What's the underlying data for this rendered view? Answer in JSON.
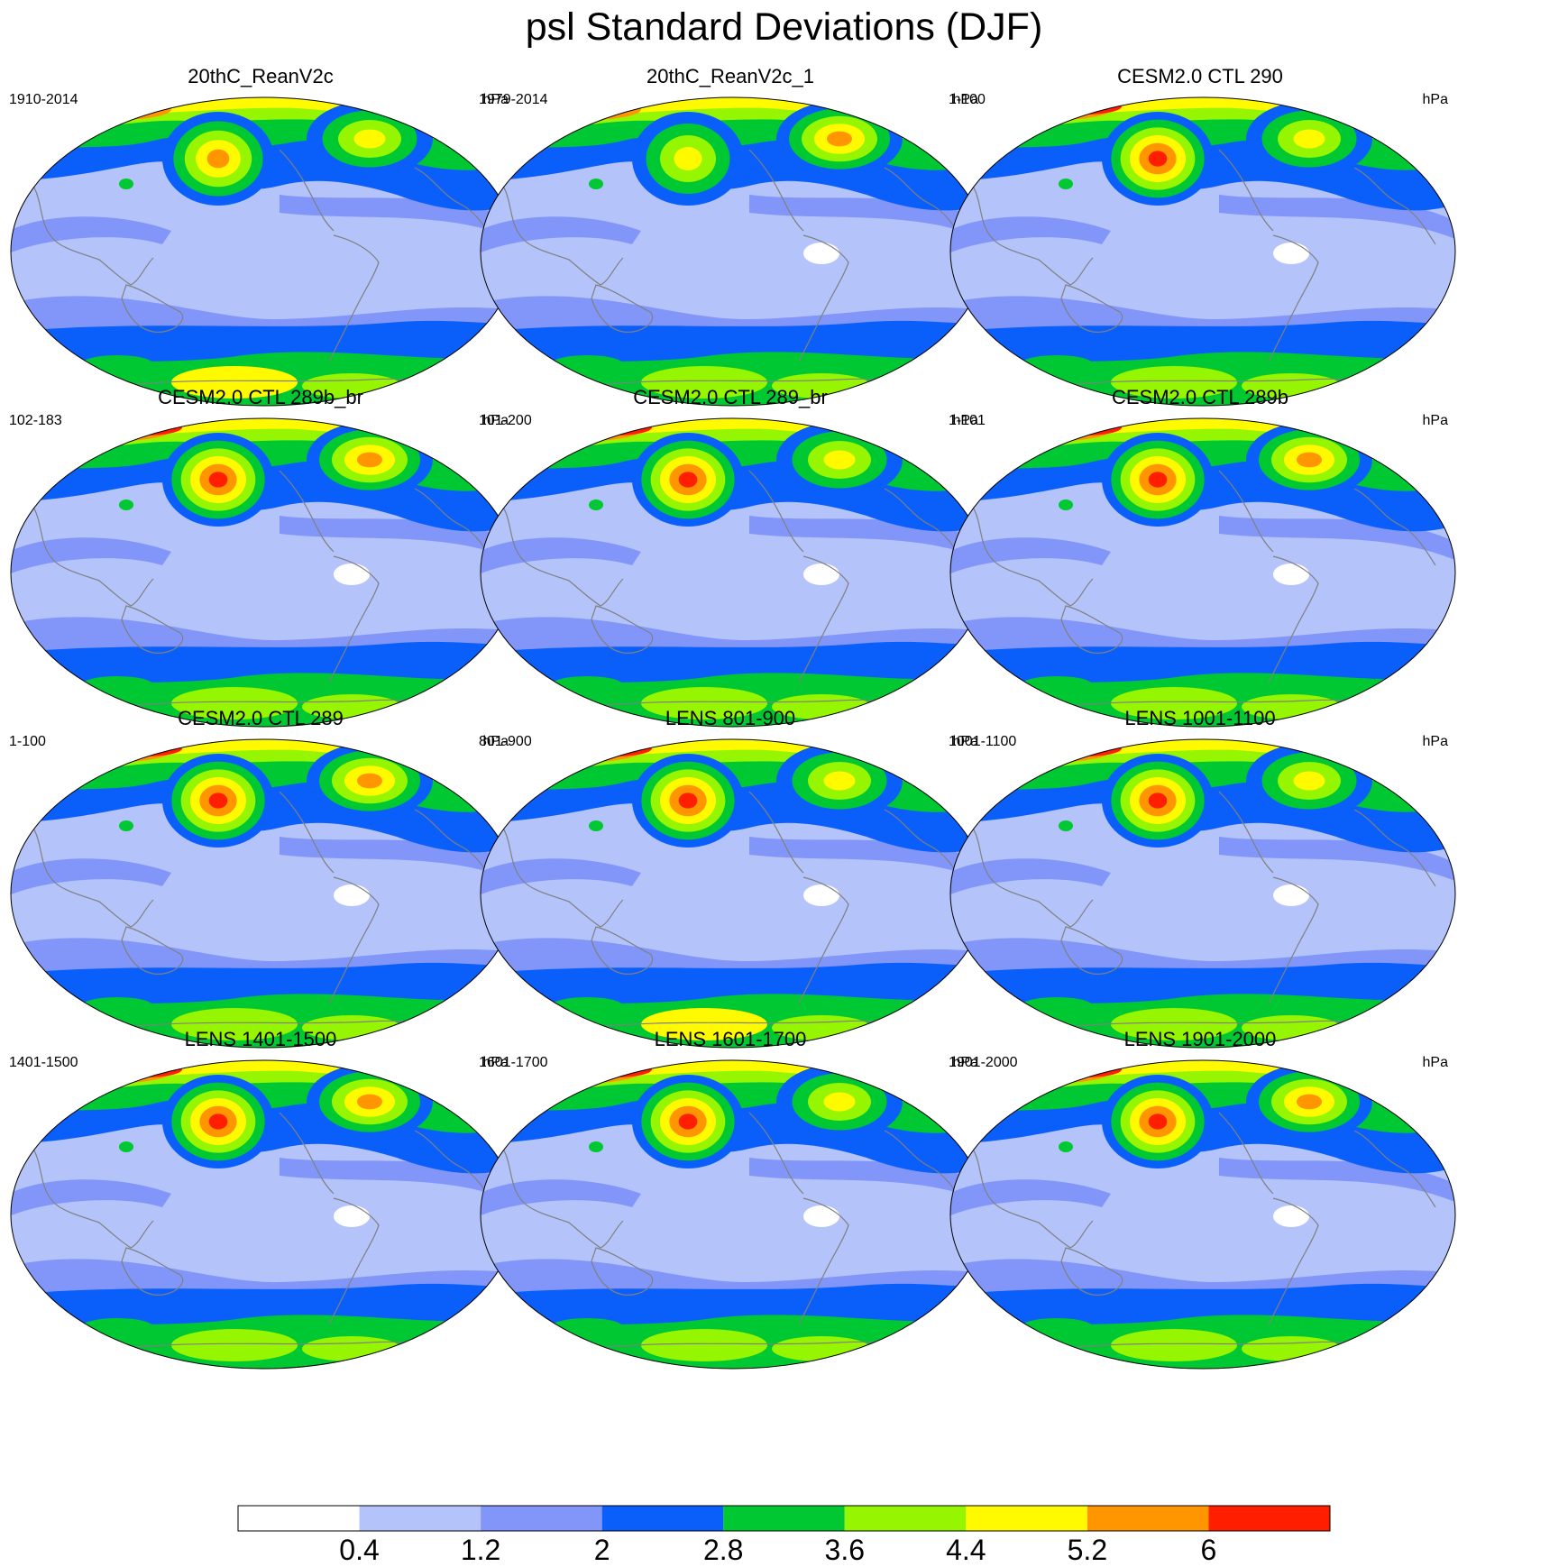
{
  "title": "psl Standard Deviations (DJF)",
  "panels": [
    {
      "title": "20thC_ReanV2c",
      "left": "1910-2014",
      "right": "hPa",
      "pac_level": 6,
      "na_level": 5,
      "sm": 6,
      "sa_white": false
    },
    {
      "title": "20thC_ReanV2c_1",
      "left": "1979-2014",
      "right": "hPa",
      "pac_level": 5,
      "na_level": 6,
      "sm": 5,
      "sa_white": true
    },
    {
      "title": "CESM2.0 CTL 290",
      "left": "1-100",
      "right": "hPa",
      "pac_level": 7,
      "na_level": 5,
      "sm": 5,
      "sa_white": true
    },
    {
      "title": "CESM2.0 CTL 289b_br",
      "left": "102-183",
      "right": "hPa",
      "pac_level": 7,
      "na_level": 6,
      "sm": 5,
      "sa_white": true
    },
    {
      "title": "CESM2.0 CTL 289_br",
      "left": "101-200",
      "right": "hPa",
      "pac_level": 7,
      "na_level": 5,
      "sm": 5,
      "sa_white": true
    },
    {
      "title": "CESM2.0 CTL 289b",
      "left": "1-101",
      "right": "hPa",
      "pac_level": 7,
      "na_level": 6,
      "sm": 5,
      "sa_white": true
    },
    {
      "title": "CESM2.0 CTL 289",
      "left": "1-100",
      "right": "hPa",
      "pac_level": 7,
      "na_level": 6,
      "sm": 5,
      "sa_white": true
    },
    {
      "title": "LENS 801-900",
      "left": "801-900",
      "right": "hPa",
      "pac_level": 7,
      "na_level": 5,
      "sm": 6,
      "sa_white": true
    },
    {
      "title": "LENS 1001-1100",
      "left": "1001-1100",
      "right": "hPa",
      "pac_level": 7,
      "na_level": 5,
      "sm": 5,
      "sa_white": true
    },
    {
      "title": "LENS 1401-1500",
      "left": "1401-1500",
      "right": "hPa",
      "pac_level": 7,
      "na_level": 6,
      "sm": 5,
      "sa_white": true
    },
    {
      "title": "LENS 1601-1700",
      "left": "1601-1700",
      "right": "hPa",
      "pac_level": 7,
      "na_level": 5,
      "sm": 5,
      "sa_white": true
    },
    {
      "title": "LENS 1901-2000",
      "left": "1901-2000",
      "right": "hPa",
      "pac_level": 7,
      "na_level": 6,
      "sm": 5,
      "sa_white": true
    }
  ],
  "colorbar": {
    "colors": [
      "#ffffff",
      "#b4c3fa",
      "#8296fa",
      "#0a5ffa",
      "#00c832",
      "#96f500",
      "#fffa00",
      "#ff9600",
      "#ff1e00"
    ],
    "labels": [
      "0.4",
      "1.2",
      "2",
      "2.8",
      "3.6",
      "4.4",
      "5.2",
      "6"
    ],
    "outline": "#000000"
  },
  "coast_color": "#808080"
}
